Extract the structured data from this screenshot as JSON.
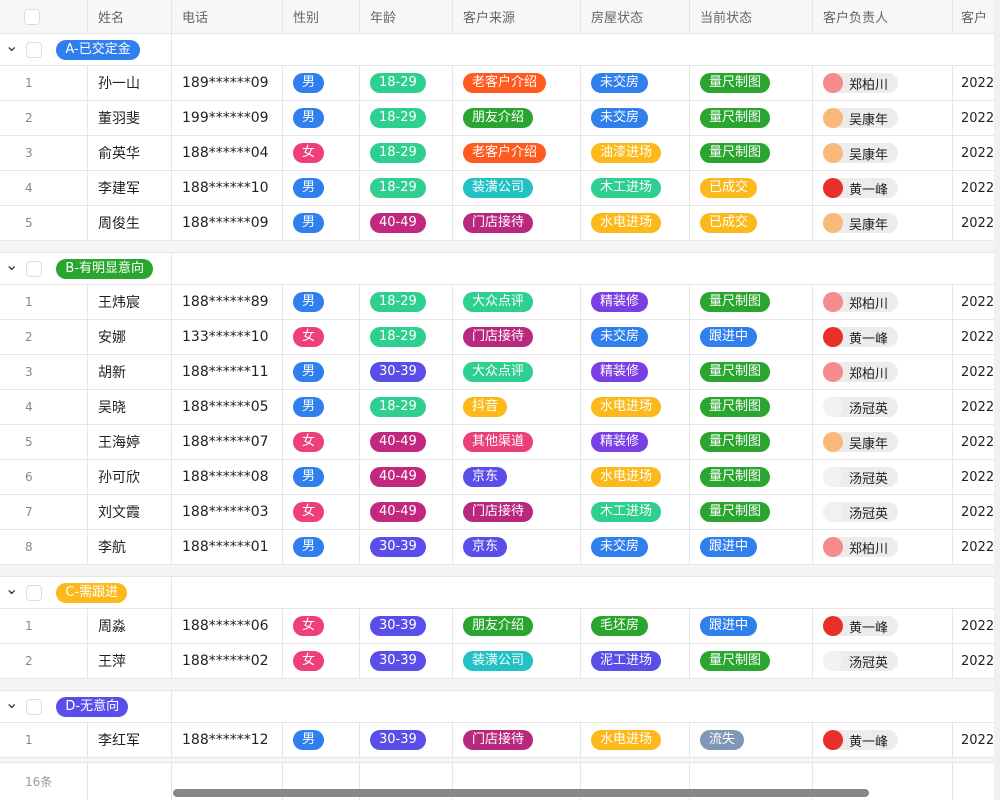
{
  "columns": [
    "姓名",
    "电话",
    "性别",
    "年龄",
    "客户来源",
    "房屋状态",
    "当前状态",
    "客户负责人",
    "客户"
  ],
  "colors": {
    "男": "#2f80ed",
    "女": "#ee3f7a",
    "18-29": "#2ecf8f",
    "30-39": "#5b4de8",
    "40-49": "#c2287e",
    "老客户介绍": "#ff5a1f",
    "朋友介绍": "#2aa52f",
    "装潢公司": "#22c1c3",
    "门店接待": "#b8287f",
    "大众点评": "#2ecf8f",
    "抖音": "#fbb91c",
    "其他渠道": "#ea3f78",
    "京东": "#5b4de8",
    "未交房": "#2f80ed",
    "油漆进场": "#fbb91c",
    "木工进场": "#2ecf8f",
    "水电进场": "#fbb91c",
    "精装修": "#7a3fe4",
    "毛坯房": "#2aa52f",
    "泥工进场": "#5b4de8",
    "量尺制图": "#2aa52f",
    "已成交": "#fbb91c",
    "跟进中": "#2f80ed",
    "流失": "#7f96b5"
  },
  "owner_avatar_colors": {
    "郑柏川": "#f58b8b",
    "吴康年": "#f8b97a",
    "黄一峰": "#e8302a",
    "汤冠英": "#f2f2f2"
  },
  "groups": [
    {
      "label": "A-已交定金",
      "color": "#2f80ed",
      "rows": [
        {
          "i": "1",
          "name": "孙一山",
          "phone": "189******09",
          "gender": "男",
          "age": "18-29",
          "source": "老客户介绍",
          "house": "未交房",
          "status": "量尺制图",
          "owner": "郑柏川",
          "extra": "2022"
        },
        {
          "i": "2",
          "name": "董羽斐",
          "phone": "199******09",
          "gender": "男",
          "age": "18-29",
          "source": "朋友介绍",
          "house": "未交房",
          "status": "量尺制图",
          "owner": "吴康年",
          "extra": "2022"
        },
        {
          "i": "3",
          "name": "俞英华",
          "phone": "188******04",
          "gender": "女",
          "age": "18-29",
          "source": "老客户介绍",
          "house": "油漆进场",
          "status": "量尺制图",
          "owner": "吴康年",
          "extra": "2022"
        },
        {
          "i": "4",
          "name": "李建军",
          "phone": "188******10",
          "gender": "男",
          "age": "18-29",
          "source": "装潢公司",
          "house": "木工进场",
          "status": "已成交",
          "owner": "黄一峰",
          "extra": "2022"
        },
        {
          "i": "5",
          "name": "周俊生",
          "phone": "188******09",
          "gender": "男",
          "age": "40-49",
          "source": "门店接待",
          "house": "水电进场",
          "status": "已成交",
          "owner": "吴康年",
          "extra": "2022"
        }
      ]
    },
    {
      "label": "B-有明显意向",
      "color": "#2aa52f",
      "rows": [
        {
          "i": "1",
          "name": "王炜宸",
          "phone": "188******89",
          "gender": "男",
          "age": "18-29",
          "source": "大众点评",
          "house": "精装修",
          "status": "量尺制图",
          "owner": "郑柏川",
          "extra": "2022"
        },
        {
          "i": "2",
          "name": "安娜",
          "phone": "133******10",
          "gender": "女",
          "age": "18-29",
          "source": "门店接待",
          "house": "未交房",
          "status": "跟进中",
          "owner": "黄一峰",
          "extra": "2022"
        },
        {
          "i": "3",
          "name": "胡新",
          "phone": "188******11",
          "gender": "男",
          "age": "30-39",
          "source": "大众点评",
          "house": "精装修",
          "status": "量尺制图",
          "owner": "郑柏川",
          "extra": "2022"
        },
        {
          "i": "4",
          "name": "吴晓",
          "phone": "188******05",
          "gender": "男",
          "age": "18-29",
          "source": "抖音",
          "house": "水电进场",
          "status": "量尺制图",
          "owner": "汤冠英",
          "extra": "2022"
        },
        {
          "i": "5",
          "name": "王海婷",
          "phone": "188******07",
          "gender": "女",
          "age": "40-49",
          "source": "其他渠道",
          "house": "精装修",
          "status": "量尺制图",
          "owner": "吴康年",
          "extra": "2022"
        },
        {
          "i": "6",
          "name": "孙可欣",
          "phone": "188******08",
          "gender": "男",
          "age": "40-49",
          "source": "京东",
          "house": "水电进场",
          "status": "量尺制图",
          "owner": "汤冠英",
          "extra": "2022"
        },
        {
          "i": "7",
          "name": "刘文霞",
          "phone": "188******03",
          "gender": "女",
          "age": "40-49",
          "source": "门店接待",
          "house": "木工进场",
          "status": "量尺制图",
          "owner": "汤冠英",
          "extra": "2022"
        },
        {
          "i": "8",
          "name": "李航",
          "phone": "188******01",
          "gender": "男",
          "age": "30-39",
          "source": "京东",
          "house": "未交房",
          "status": "跟进中",
          "owner": "郑柏川",
          "extra": "2022"
        }
      ]
    },
    {
      "label": "C-需跟进",
      "color": "#fbb91c",
      "rows": [
        {
          "i": "1",
          "name": "周淼",
          "phone": "188******06",
          "gender": "女",
          "age": "30-39",
          "source": "朋友介绍",
          "house": "毛坯房",
          "status": "跟进中",
          "owner": "黄一峰",
          "extra": "2022"
        },
        {
          "i": "2",
          "name": "王萍",
          "phone": "188******02",
          "gender": "女",
          "age": "30-39",
          "source": "装潢公司",
          "house": "泥工进场",
          "status": "量尺制图",
          "owner": "汤冠英",
          "extra": "2022"
        }
      ]
    },
    {
      "label": "D-无意向",
      "color": "#5b4de8",
      "rows": [
        {
          "i": "1",
          "name": "李红军",
          "phone": "188******12",
          "gender": "男",
          "age": "30-39",
          "source": "门店接待",
          "house": "水电进场",
          "status": "流失",
          "owner": "黄一峰",
          "extra": "2022"
        }
      ]
    }
  ],
  "footer": {
    "count": "16条"
  }
}
